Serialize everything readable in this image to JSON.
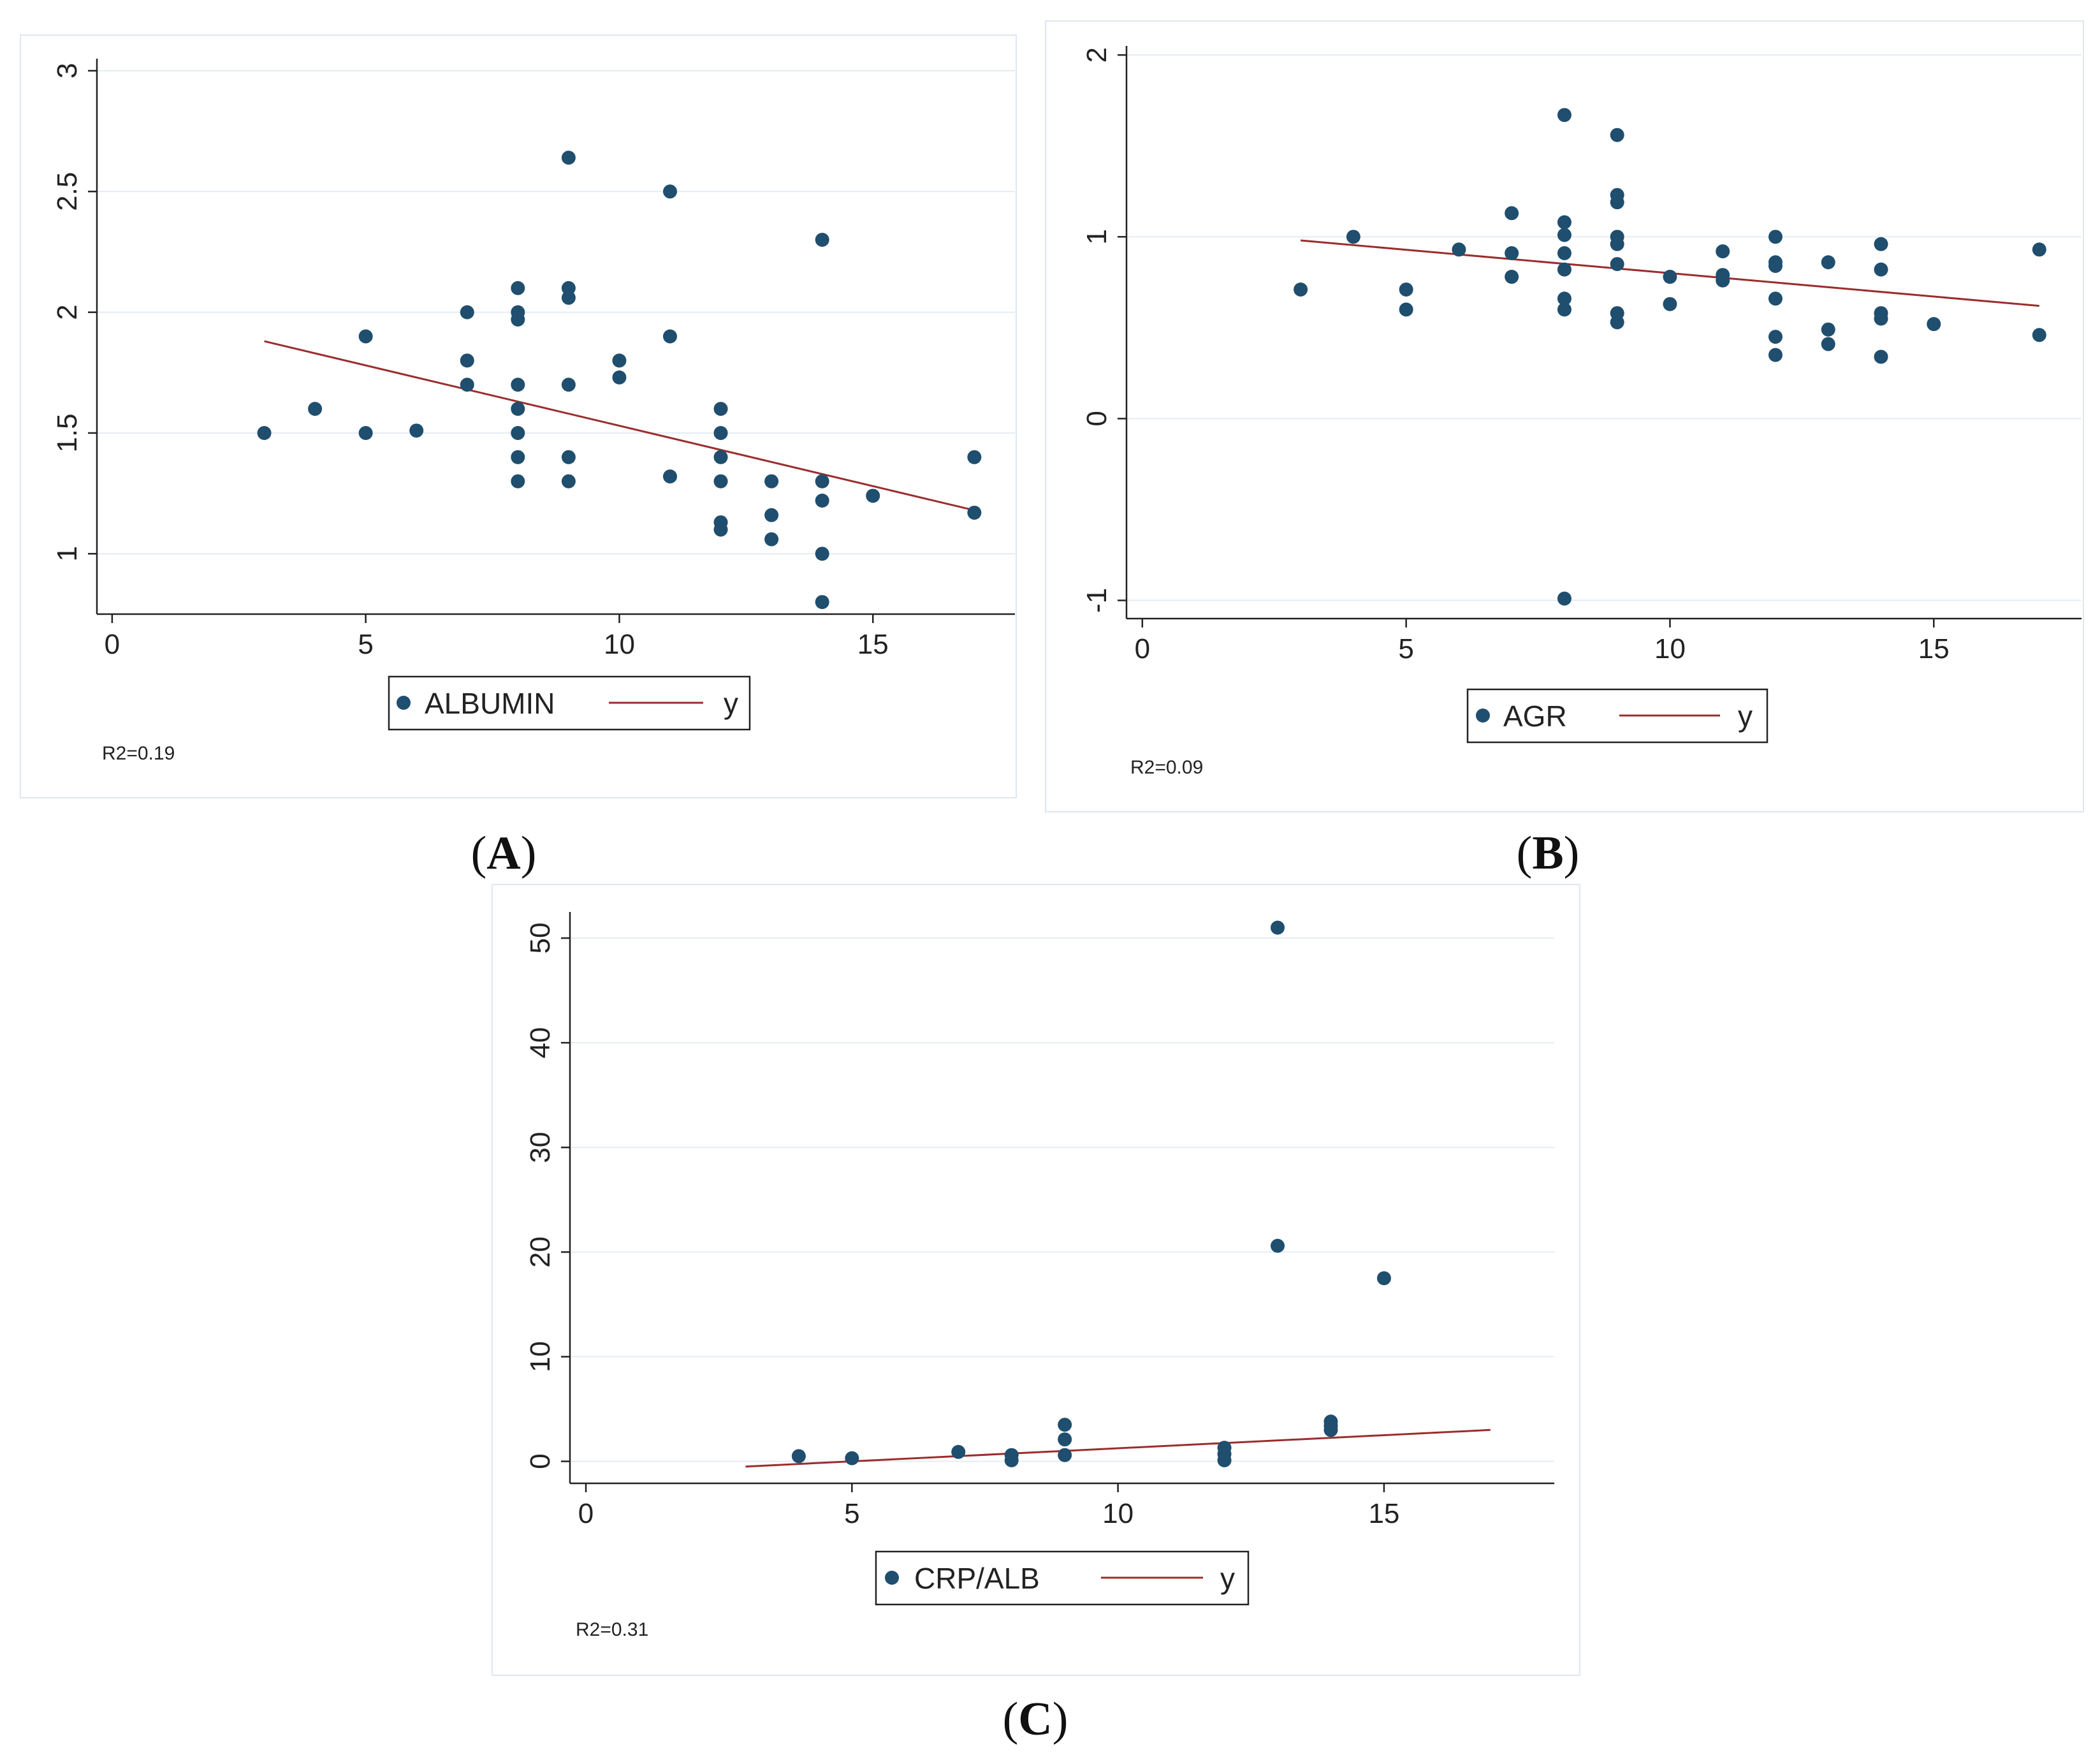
{
  "chart_data": [
    {
      "type": "scatter",
      "panel": "A",
      "x_ticks": [
        0,
        5,
        10,
        15
      ],
      "y_ticks": [
        1,
        1.5,
        2,
        2.5,
        3
      ],
      "y_tick_labels": [
        "1",
        "1.5",
        "2",
        "2.5",
        "3"
      ],
      "xlim": [
        -0.3,
        17.8
      ],
      "ylim": [
        0.75,
        3.05
      ],
      "points": [
        [
          3,
          1.5
        ],
        [
          4,
          1.6
        ],
        [
          5,
          1.9
        ],
        [
          5,
          1.5
        ],
        [
          6,
          1.51
        ],
        [
          7,
          2.0
        ],
        [
          7,
          1.8
        ],
        [
          7,
          1.7
        ],
        [
          8,
          2.1
        ],
        [
          8,
          2.0
        ],
        [
          8,
          1.97
        ],
        [
          8,
          1.7
        ],
        [
          8,
          1.6
        ],
        [
          8,
          1.5
        ],
        [
          8,
          1.4
        ],
        [
          8,
          1.3
        ],
        [
          9,
          2.64
        ],
        [
          9,
          2.1
        ],
        [
          9,
          2.06
        ],
        [
          9,
          1.7
        ],
        [
          9,
          1.4
        ],
        [
          9,
          1.3
        ],
        [
          10,
          1.8
        ],
        [
          10,
          1.73
        ],
        [
          11,
          2.5
        ],
        [
          11,
          1.9
        ],
        [
          11,
          1.32
        ],
        [
          12,
          1.6
        ],
        [
          12,
          1.5
        ],
        [
          12,
          1.4
        ],
        [
          12,
          1.3
        ],
        [
          12,
          1.13
        ],
        [
          12,
          1.1
        ],
        [
          13,
          1.3
        ],
        [
          13,
          1.16
        ],
        [
          13,
          1.06
        ],
        [
          14,
          2.3
        ],
        [
          14,
          1.3
        ],
        [
          14,
          1.22
        ],
        [
          14,
          1.0
        ],
        [
          14,
          0.8
        ],
        [
          15,
          1.24
        ],
        [
          17,
          1.4
        ],
        [
          17,
          1.17
        ]
      ],
      "fit_line": [
        [
          3,
          1.88
        ],
        [
          17,
          1.18
        ]
      ],
      "legend": {
        "marker_label": "ALBUMIN",
        "line_label": "y"
      },
      "annotation": "R2=0.19",
      "caption_letter": "A"
    },
    {
      "type": "scatter",
      "panel": "B",
      "x_ticks": [
        0,
        5,
        10,
        15
      ],
      "y_ticks": [
        -1,
        0,
        1,
        2
      ],
      "y_tick_labels": [
        "-1",
        "0",
        "1",
        "2"
      ],
      "xlim": [
        -0.3,
        17.8
      ],
      "ylim": [
        -1.1,
        2.05
      ],
      "points": [
        [
          3,
          0.71
        ],
        [
          4,
          1.0
        ],
        [
          5,
          0.71
        ],
        [
          5,
          0.6
        ],
        [
          6,
          0.93
        ],
        [
          7,
          1.13
        ],
        [
          7,
          0.91
        ],
        [
          7,
          0.78
        ],
        [
          8,
          1.67
        ],
        [
          8,
          1.08
        ],
        [
          8,
          1.01
        ],
        [
          8,
          0.91
        ],
        [
          8,
          0.82
        ],
        [
          8,
          0.66
        ],
        [
          8,
          0.6
        ],
        [
          8,
          -0.99
        ],
        [
          9,
          1.56
        ],
        [
          9,
          1.23
        ],
        [
          9,
          1.19
        ],
        [
          9,
          1.0
        ],
        [
          9,
          0.96
        ],
        [
          9,
          0.85
        ],
        [
          9,
          0.58
        ],
        [
          9,
          0.53
        ],
        [
          10,
          0.78
        ],
        [
          10,
          0.63
        ],
        [
          11,
          0.92
        ],
        [
          11,
          0.79
        ],
        [
          11,
          0.76
        ],
        [
          12,
          1.0
        ],
        [
          12,
          0.86
        ],
        [
          12,
          0.84
        ],
        [
          12,
          0.66
        ],
        [
          12,
          0.45
        ],
        [
          12,
          0.35
        ],
        [
          13,
          0.86
        ],
        [
          13,
          0.49
        ],
        [
          13,
          0.41
        ],
        [
          14,
          0.96
        ],
        [
          14,
          0.82
        ],
        [
          14,
          0.58
        ],
        [
          14,
          0.55
        ],
        [
          14,
          0.34
        ],
        [
          15,
          0.52
        ],
        [
          17,
          0.93
        ],
        [
          17,
          0.46
        ]
      ],
      "fit_line": [
        [
          3,
          0.98
        ],
        [
          17,
          0.62
        ]
      ],
      "legend": {
        "marker_label": "AGR",
        "line_label": "y"
      },
      "annotation": "R2=0.09",
      "caption_letter": "B"
    },
    {
      "type": "scatter",
      "panel": "C",
      "x_ticks": [
        0,
        5,
        10,
        15
      ],
      "y_ticks": [
        0,
        10,
        20,
        30,
        40,
        50
      ],
      "y_tick_labels": [
        "0",
        "10",
        "20",
        "30",
        "40",
        "50"
      ],
      "xlim": [
        -0.3,
        18.2
      ],
      "ylim": [
        -2.1,
        52.5
      ],
      "points": [
        [
          4,
          0.5
        ],
        [
          5,
          0.3
        ],
        [
          7,
          0.9
        ],
        [
          8,
          0.6
        ],
        [
          8,
          0.1
        ],
        [
          9,
          3.5
        ],
        [
          9,
          2.1
        ],
        [
          9,
          0.6
        ],
        [
          12,
          1.3
        ],
        [
          12,
          0.7
        ],
        [
          12,
          0.1
        ],
        [
          13,
          51.0
        ],
        [
          13,
          20.6
        ],
        [
          14,
          3.8
        ],
        [
          14,
          3.4
        ],
        [
          14,
          3.0
        ],
        [
          15,
          17.5
        ]
      ],
      "fit_line": [
        [
          3,
          -0.5
        ],
        [
          17,
          3.0
        ]
      ],
      "legend": {
        "marker_label": "CRP/ALB",
        "line_label": "y"
      },
      "annotation": "R2=0.31",
      "caption_letter": "C"
    }
  ],
  "captions": [
    {
      "open": "(",
      "letter": "A",
      "close": ")"
    },
    {
      "open": "(",
      "letter": "B",
      "close": ")"
    },
    {
      "open": "(",
      "letter": "C",
      "close": ")"
    }
  ]
}
